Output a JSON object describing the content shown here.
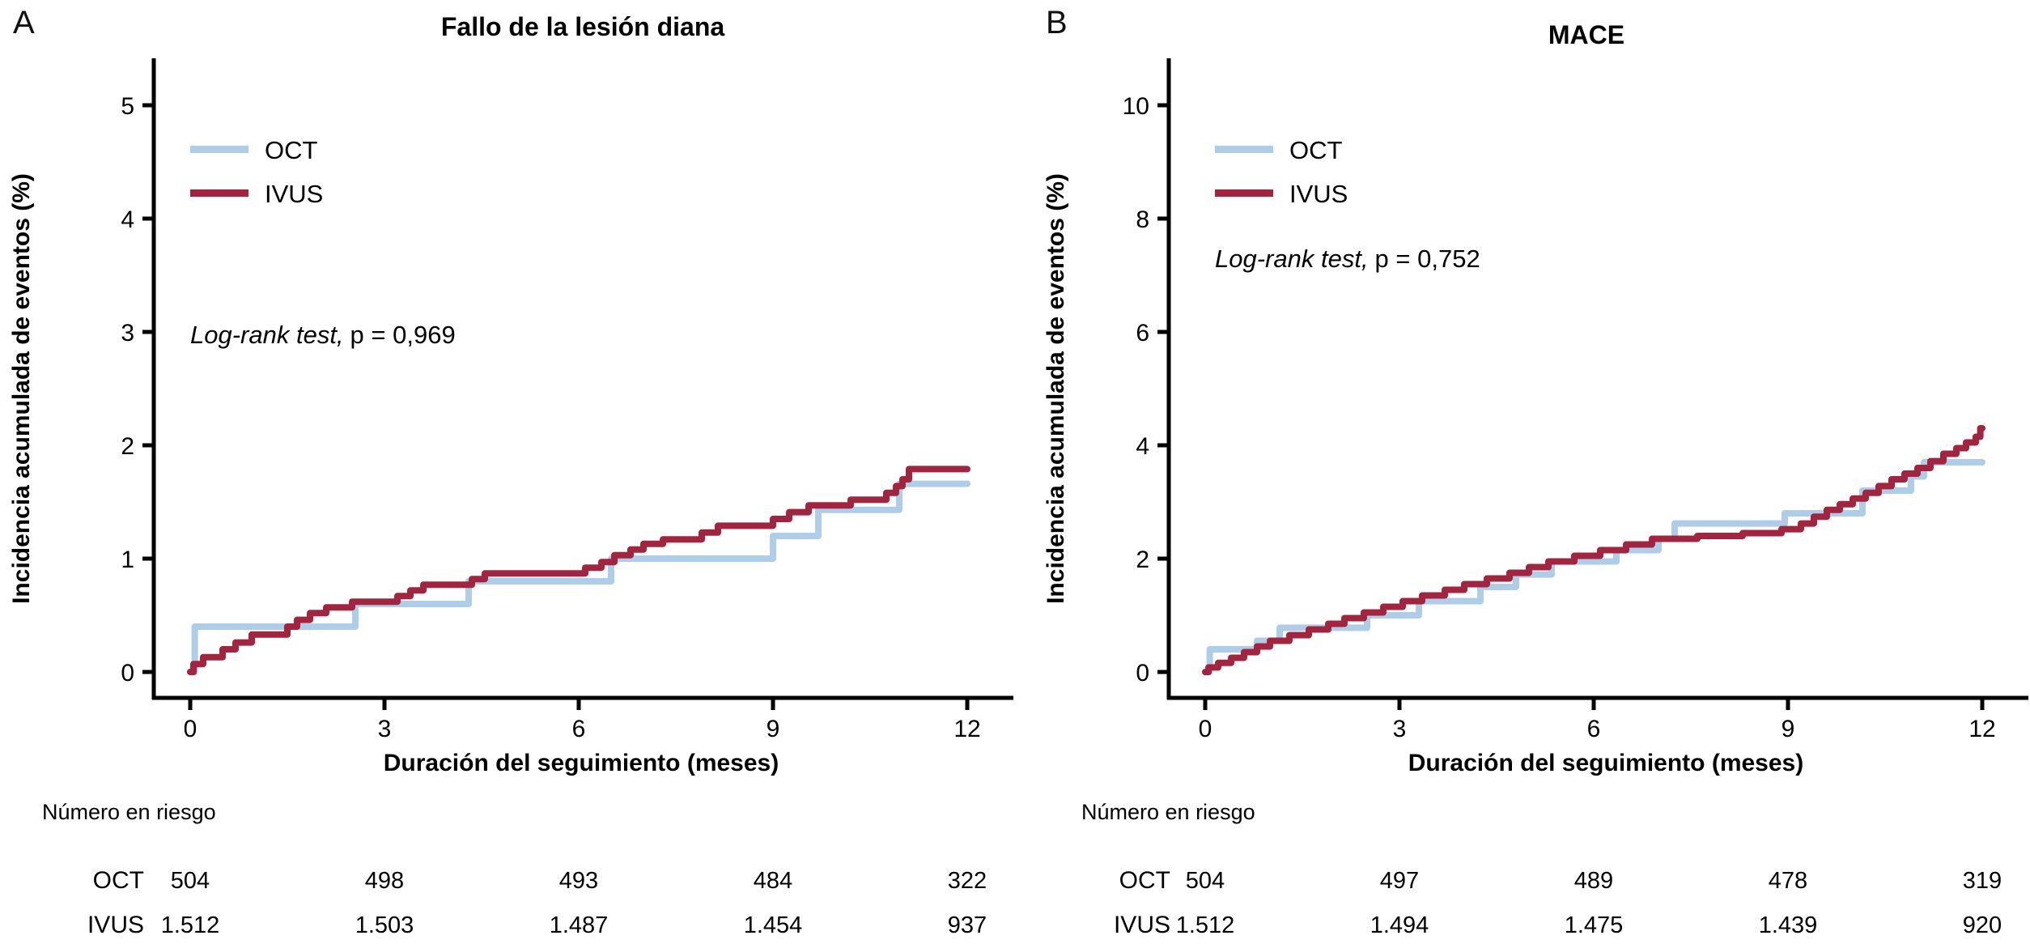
{
  "figure": {
    "panel_letters": {
      "a": "A",
      "b": "B"
    }
  },
  "colors": {
    "oct": "#aecde9",
    "ivus": "#a2243f",
    "axis": "#000000"
  },
  "chart_data": [
    {
      "type": "line",
      "subtype": "kaplan-meier-step",
      "panel": "A",
      "title": "Fallo de la lesión diana",
      "ylabel": "Incidencia acumulada de eventos (%)",
      "xlabel": "Duración del seguimiento (meses)",
      "legend": [
        "OCT",
        "IVUS"
      ],
      "stats_italic": "Log-rank test,",
      "stats_regular": "p = 0,969",
      "xlim": [
        0,
        12
      ],
      "ylim": [
        0,
        5
      ],
      "xticks": [
        0,
        3,
        6,
        9,
        12
      ],
      "yticks": [
        0,
        1,
        2,
        3,
        4,
        5
      ],
      "grid": false,
      "legend_position": "upper-left-inside",
      "series": [
        {
          "name": "OCT",
          "color": "#aecde9",
          "steps": [
            [
              0,
              0
            ],
            [
              0.07,
              0.4
            ],
            [
              2.55,
              0.6
            ],
            [
              4.3,
              0.8
            ],
            [
              6.5,
              1.0
            ],
            [
              9.0,
              1.2
            ],
            [
              9.7,
              1.43
            ],
            [
              10.95,
              1.66
            ]
          ]
        },
        {
          "name": "IVUS",
          "color": "#a2243f",
          "steps": [
            [
              0,
              0
            ],
            [
              0.05,
              0.07
            ],
            [
              0.2,
              0.13
            ],
            [
              0.5,
              0.2
            ],
            [
              0.7,
              0.26
            ],
            [
              0.95,
              0.33
            ],
            [
              1.5,
              0.4
            ],
            [
              1.65,
              0.46
            ],
            [
              1.85,
              0.52
            ],
            [
              2.1,
              0.57
            ],
            [
              2.5,
              0.62
            ],
            [
              3.2,
              0.67
            ],
            [
              3.4,
              0.72
            ],
            [
              3.6,
              0.77
            ],
            [
              4.35,
              0.82
            ],
            [
              4.55,
              0.87
            ],
            [
              6.1,
              0.92
            ],
            [
              6.35,
              0.97
            ],
            [
              6.55,
              1.03
            ],
            [
              6.8,
              1.08
            ],
            [
              7.0,
              1.13
            ],
            [
              7.3,
              1.17
            ],
            [
              7.9,
              1.23
            ],
            [
              8.15,
              1.29
            ],
            [
              9.0,
              1.35
            ],
            [
              9.25,
              1.41
            ],
            [
              9.55,
              1.47
            ],
            [
              10.2,
              1.52
            ],
            [
              10.75,
              1.58
            ],
            [
              10.9,
              1.64
            ],
            [
              11.0,
              1.7
            ],
            [
              11.1,
              1.79
            ]
          ]
        }
      ],
      "risk_table": {
        "header": "Número en riesgo",
        "rows": [
          {
            "label": "OCT",
            "values": [
              "504",
              "498",
              "493",
              "484",
              "322"
            ]
          },
          {
            "label": "IVUS",
            "values": [
              "1.512",
              "1.503",
              "1.487",
              "1.454",
              "937"
            ]
          }
        ]
      }
    },
    {
      "type": "line",
      "subtype": "kaplan-meier-step",
      "panel": "B",
      "title": "MACE",
      "ylabel": "Incidencia acumulada de eventos (%)",
      "xlabel": "Duración del seguimiento (meses)",
      "legend": [
        "OCT",
        "IVUS"
      ],
      "stats_italic": "Log-rank test,",
      "stats_regular": "p = 0,752",
      "xlim": [
        0,
        12
      ],
      "ylim": [
        0,
        10
      ],
      "xticks": [
        0,
        3,
        6,
        9,
        12
      ],
      "yticks": [
        0,
        2,
        4,
        6,
        8,
        10
      ],
      "grid": false,
      "legend_position": "upper-left-inside",
      "series": [
        {
          "name": "OCT",
          "color": "#aecde9",
          "steps": [
            [
              0,
              0
            ],
            [
              0.07,
              0.4
            ],
            [
              0.8,
              0.55
            ],
            [
              1.15,
              0.78
            ],
            [
              2.5,
              1.0
            ],
            [
              3.3,
              1.25
            ],
            [
              4.25,
              1.5
            ],
            [
              4.8,
              1.72
            ],
            [
              5.35,
              1.95
            ],
            [
              6.35,
              2.15
            ],
            [
              7.0,
              2.35
            ],
            [
              7.25,
              2.62
            ],
            [
              8.95,
              2.8
            ],
            [
              10.15,
              3.2
            ],
            [
              10.9,
              3.45
            ],
            [
              11.1,
              3.7
            ]
          ]
        },
        {
          "name": "IVUS",
          "color": "#a2243f",
          "steps": [
            [
              0,
              0
            ],
            [
              0.05,
              0.08
            ],
            [
              0.2,
              0.16
            ],
            [
              0.4,
              0.25
            ],
            [
              0.6,
              0.35
            ],
            [
              0.8,
              0.45
            ],
            [
              1.0,
              0.55
            ],
            [
              1.3,
              0.65
            ],
            [
              1.6,
              0.75
            ],
            [
              1.9,
              0.85
            ],
            [
              2.15,
              0.95
            ],
            [
              2.45,
              1.05
            ],
            [
              2.75,
              1.15
            ],
            [
              3.05,
              1.25
            ],
            [
              3.35,
              1.35
            ],
            [
              3.7,
              1.45
            ],
            [
              4.0,
              1.55
            ],
            [
              4.35,
              1.65
            ],
            [
              4.7,
              1.75
            ],
            [
              5.0,
              1.85
            ],
            [
              5.3,
              1.95
            ],
            [
              5.7,
              2.05
            ],
            [
              6.1,
              2.15
            ],
            [
              6.5,
              2.25
            ],
            [
              6.9,
              2.35
            ],
            [
              7.6,
              2.4
            ],
            [
              8.3,
              2.45
            ],
            [
              8.9,
              2.52
            ],
            [
              9.2,
              2.62
            ],
            [
              9.4,
              2.74
            ],
            [
              9.6,
              2.86
            ],
            [
              9.8,
              2.96
            ],
            [
              10.0,
              3.06
            ],
            [
              10.2,
              3.16
            ],
            [
              10.4,
              3.28
            ],
            [
              10.6,
              3.4
            ],
            [
              10.8,
              3.5
            ],
            [
              11.0,
              3.6
            ],
            [
              11.2,
              3.72
            ],
            [
              11.4,
              3.85
            ],
            [
              11.6,
              3.95
            ],
            [
              11.75,
              4.05
            ],
            [
              11.9,
              4.15
            ],
            [
              11.97,
              4.3
            ]
          ]
        }
      ],
      "risk_table": {
        "header": "Número en riesgo",
        "rows": [
          {
            "label": "OCT",
            "values": [
              "504",
              "497",
              "489",
              "478",
              "319"
            ]
          },
          {
            "label": "IVUS",
            "values": [
              "1.512",
              "1.494",
              "1.475",
              "1.439",
              "920"
            ]
          }
        ]
      }
    }
  ]
}
